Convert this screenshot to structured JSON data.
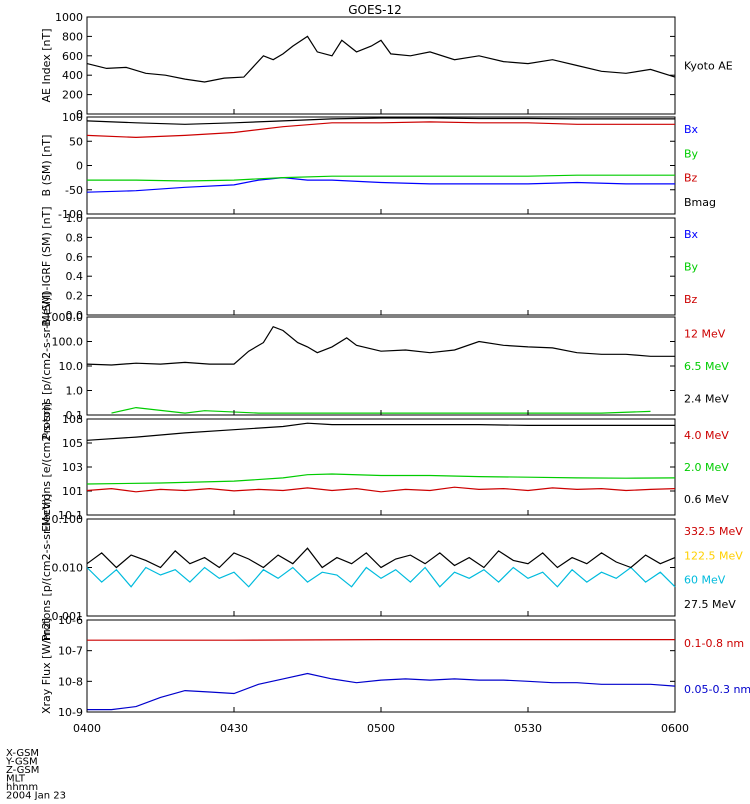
{
  "title": "GOES-12",
  "footer": {
    "coord_labels": [
      "X-GSM",
      "Y-GSM",
      "Z-GSM",
      "MLT",
      "hhmm",
      "2004 Jan 23"
    ],
    "time_ticks": [
      "0400",
      "0430",
      "0500",
      "0530",
      "0600"
    ]
  },
  "chart_data": [
    {
      "type": "line",
      "ylabel": "AE Index [nT]",
      "ylim": [
        0,
        1000
      ],
      "yticks": [
        "0",
        "200",
        "400",
        "600",
        "800",
        "1000"
      ],
      "series": [
        {
          "name": "Kyoto AE",
          "color": "#000000",
          "x": [
            "04:00",
            "04:04",
            "04:08",
            "04:12",
            "04:16",
            "04:20",
            "04:24",
            "04:28",
            "04:32",
            "04:36",
            "04:38",
            "04:40",
            "04:42",
            "04:45",
            "04:47",
            "04:50",
            "04:52",
            "04:55",
            "04:58",
            "05:00",
            "05:02",
            "05:06",
            "05:10",
            "05:15",
            "05:20",
            "05:25",
            "05:30",
            "05:35",
            "05:40",
            "05:45",
            "05:50",
            "05:55",
            "06:00"
          ],
          "y": [
            520,
            470,
            480,
            420,
            400,
            360,
            330,
            370,
            380,
            600,
            560,
            620,
            700,
            800,
            640,
            600,
            760,
            640,
            700,
            760,
            620,
            600,
            640,
            560,
            600,
            540,
            520,
            560,
            500,
            440,
            420,
            460,
            380
          ]
        }
      ]
    },
    {
      "type": "line",
      "ylabel": "B (SM) [nT]",
      "ylim": [
        -100,
        100
      ],
      "yticks": [
        "-100",
        "-50",
        "0",
        "50",
        "100"
      ],
      "series": [
        {
          "name": "Bx",
          "color": "#0000ff",
          "x": [
            "04:00",
            "04:10",
            "04:20",
            "04:30",
            "04:35",
            "04:40",
            "04:45",
            "04:50",
            "05:00",
            "05:10",
            "05:20",
            "05:30",
            "05:40",
            "05:50",
            "06:00"
          ],
          "y": [
            -55,
            -52,
            -45,
            -40,
            -30,
            -25,
            -30,
            -30,
            -35,
            -38,
            -38,
            -38,
            -35,
            -38,
            -38
          ]
        },
        {
          "name": "By",
          "color": "#00cc00",
          "x": [
            "04:00",
            "04:10",
            "04:20",
            "04:30",
            "04:40",
            "04:50",
            "05:00",
            "05:10",
            "05:20",
            "05:30",
            "05:40",
            "05:50",
            "06:00"
          ],
          "y": [
            -30,
            -30,
            -32,
            -30,
            -25,
            -22,
            -22,
            -22,
            -22,
            -22,
            -20,
            -20,
            -20
          ]
        },
        {
          "name": "Bz",
          "color": "#cc0000",
          "x": [
            "04:00",
            "04:10",
            "04:20",
            "04:30",
            "04:40",
            "04:50",
            "05:00",
            "05:10",
            "05:20",
            "05:30",
            "05:40",
            "05:50",
            "06:00"
          ],
          "y": [
            62,
            58,
            62,
            68,
            80,
            88,
            88,
            90,
            88,
            88,
            85,
            85,
            85
          ]
        },
        {
          "name": "Bmag",
          "color": "#000000",
          "x": [
            "04:00",
            "04:10",
            "04:20",
            "04:30",
            "04:40",
            "04:50",
            "05:00",
            "05:10",
            "05:20",
            "05:30",
            "05:40",
            "05:50",
            "06:00"
          ],
          "y": [
            92,
            88,
            85,
            88,
            92,
            96,
            98,
            98,
            97,
            97,
            96,
            96,
            96
          ]
        }
      ]
    },
    {
      "type": "line",
      "ylabel": "B (SM)-IGRF (SM) [nT]",
      "ylim": [
        0,
        1
      ],
      "yticks": [
        "0.0",
        "0.2",
        "0.4",
        "0.6",
        "0.8",
        "1.0"
      ],
      "series": [
        {
          "name": "Bx",
          "color": "#0000ff",
          "x": [],
          "y": []
        },
        {
          "name": "By",
          "color": "#00cc00",
          "x": [],
          "y": []
        },
        {
          "name": "Bz",
          "color": "#cc0000",
          "x": [],
          "y": []
        }
      ]
    },
    {
      "type": "line",
      "scale": "log",
      "ylabel": "Protons [p/(cm2-s-sr-MeV)]",
      "ylim": [
        0.1,
        1000
      ],
      "yticks": [
        "0.1",
        "1.0",
        "10.0",
        "100.0",
        "1000.0"
      ],
      "series": [
        {
          "name": "12 MeV",
          "color": "#cc0000",
          "x": [],
          "y": []
        },
        {
          "name": "6.5 MeV",
          "color": "#00cc00",
          "x": [
            "04:05",
            "04:10",
            "04:20",
            "04:24",
            "04:35",
            "04:45",
            "05:00",
            "05:10",
            "05:25",
            "05:35",
            "05:45",
            "05:55"
          ],
          "y": [
            0.12,
            0.2,
            0.12,
            0.15,
            0.12,
            0.12,
            0.12,
            0.12,
            0.12,
            0.12,
            0.12,
            0.14
          ]
        },
        {
          "name": "2.4 MeV",
          "color": "#000000",
          "x": [
            "04:00",
            "04:05",
            "04:10",
            "04:15",
            "04:20",
            "04:25",
            "04:30",
            "04:33",
            "04:36",
            "04:38",
            "04:40",
            "04:43",
            "04:45",
            "04:47",
            "04:50",
            "04:53",
            "04:55",
            "05:00",
            "05:05",
            "05:10",
            "05:15",
            "05:20",
            "05:25",
            "05:30",
            "05:35",
            "05:40",
            "05:45",
            "05:50",
            "05:55",
            "06:00"
          ],
          "y": [
            12,
            11,
            13,
            12,
            14,
            12,
            12,
            40,
            90,
            400,
            280,
            90,
            60,
            35,
            60,
            140,
            70,
            40,
            45,
            35,
            45,
            100,
            70,
            60,
            55,
            35,
            30,
            30,
            25,
            25
          ]
        }
      ]
    },
    {
      "type": "line",
      "scale": "log",
      "ylabel": "Electrons [e/(cm2-s-sr)]",
      "ylim": [
        0.1,
        100000000.0
      ],
      "yticks": [
        "10-1",
        "101",
        "103",
        "105",
        "108"
      ],
      "series": [
        {
          "name": "4.0 MeV",
          "color": "#cc0000",
          "x": [
            "04:00",
            "04:05",
            "04:10",
            "04:15",
            "04:20",
            "04:25",
            "04:30",
            "04:35",
            "04:40",
            "04:45",
            "04:50",
            "04:55",
            "05:00",
            "05:05",
            "05:10",
            "05:15",
            "05:20",
            "05:25",
            "05:30",
            "05:35",
            "05:40",
            "05:45",
            "05:50",
            "05:55",
            "06:00"
          ],
          "y": [
            20,
            30,
            15,
            25,
            20,
            30,
            18,
            25,
            20,
            35,
            20,
            30,
            15,
            25,
            20,
            40,
            25,
            30,
            20,
            35,
            25,
            30,
            20,
            25,
            30
          ]
        },
        {
          "name": "2.0 MeV",
          "color": "#00cc00",
          "x": [
            "04:00",
            "04:15",
            "04:30",
            "04:40",
            "04:45",
            "04:50",
            "05:00",
            "05:10",
            "05:20",
            "05:30",
            "05:40",
            "05:50",
            "06:00"
          ],
          "y": [
            80,
            100,
            150,
            300,
            600,
            700,
            500,
            500,
            400,
            350,
            300,
            280,
            300
          ]
        },
        {
          "name": "0.6 MeV",
          "color": "#000000",
          "x": [
            "04:00",
            "04:10",
            "04:20",
            "04:30",
            "04:40",
            "04:45",
            "04:50",
            "05:00",
            "05:10",
            "05:20",
            "05:30",
            "05:40",
            "05:50",
            "06:00"
          ],
          "y": [
            1000000.0,
            2000000.0,
            5000000.0,
            10000000.0,
            20000000.0,
            40000000.0,
            30000000.0,
            30000000.0,
            30000000.0,
            30000000.0,
            25000000.0,
            25000000.0,
            25000000.0,
            25000000.0
          ]
        }
      ]
    },
    {
      "type": "line",
      "scale": "log",
      "ylabel": "Protons [p/(cm2-s-sr-MeV)]",
      "ylim": [
        0.001,
        0.1
      ],
      "yticks": [
        "0.001",
        "0.010",
        "0.100"
      ],
      "series": [
        {
          "name": "332.5 MeV",
          "color": "#cc0000",
          "x": [],
          "y": []
        },
        {
          "name": "122.5 MeV",
          "color": "#ffff00",
          "x": [],
          "y": []
        },
        {
          "name": "60 MeV",
          "color": "#00bbdd",
          "x": [
            "04:00",
            "04:03",
            "04:06",
            "04:09",
            "04:12",
            "04:15",
            "04:18",
            "04:21",
            "04:24",
            "04:27",
            "04:30",
            "04:33",
            "04:36",
            "04:39",
            "04:42",
            "04:45",
            "04:48",
            "04:51",
            "04:54",
            "04:57",
            "05:00",
            "05:03",
            "05:06",
            "05:09",
            "05:12",
            "05:15",
            "05:18",
            "05:21",
            "05:24",
            "05:27",
            "05:30",
            "05:33",
            "05:36",
            "05:39",
            "05:42",
            "05:45",
            "05:48",
            "05:51",
            "05:54",
            "05:57",
            "06:00"
          ],
          "y": [
            0.01,
            0.005,
            0.009,
            0.004,
            0.01,
            0.007,
            0.009,
            0.005,
            0.01,
            0.006,
            0.008,
            0.004,
            0.009,
            0.006,
            0.01,
            0.005,
            0.008,
            0.007,
            0.004,
            0.01,
            0.006,
            0.009,
            0.005,
            0.01,
            0.004,
            0.008,
            0.006,
            0.009,
            0.005,
            0.01,
            0.006,
            0.008,
            0.004,
            0.009,
            0.005,
            0.008,
            0.006,
            0.01,
            0.005,
            0.008,
            0.004
          ]
        },
        {
          "name": "27.5 MeV",
          "color": "#000000",
          "x": [
            "04:00",
            "04:03",
            "04:06",
            "04:09",
            "04:12",
            "04:15",
            "04:18",
            "04:21",
            "04:24",
            "04:27",
            "04:30",
            "04:33",
            "04:36",
            "04:39",
            "04:42",
            "04:45",
            "04:48",
            "04:51",
            "04:54",
            "04:57",
            "05:00",
            "05:03",
            "05:06",
            "05:09",
            "05:12",
            "05:15",
            "05:18",
            "05:21",
            "05:24",
            "05:27",
            "05:30",
            "05:33",
            "05:36",
            "05:39",
            "05:42",
            "05:45",
            "05:48",
            "05:51",
            "05:54",
            "05:57",
            "06:00"
          ],
          "y": [
            0.012,
            0.02,
            0.01,
            0.018,
            0.014,
            0.01,
            0.022,
            0.012,
            0.016,
            0.01,
            0.02,
            0.015,
            0.01,
            0.018,
            0.012,
            0.025,
            0.01,
            0.016,
            0.012,
            0.02,
            0.01,
            0.015,
            0.018,
            0.012,
            0.02,
            0.011,
            0.016,
            0.01,
            0.022,
            0.014,
            0.012,
            0.02,
            0.01,
            0.016,
            0.012,
            0.02,
            0.013,
            0.01,
            0.018,
            0.012,
            0.016
          ]
        }
      ]
    },
    {
      "type": "line",
      "scale": "log",
      "ylabel": "Xray Flux [W/m2]",
      "ylim": [
        1e-09,
        1e-06
      ],
      "yticks": [
        "10-9",
        "10-8",
        "10-7",
        "10-6"
      ],
      "series": [
        {
          "name": "0.1-0.8 nm",
          "color": "#cc0000",
          "x": [
            "04:00",
            "04:30",
            "05:00",
            "05:30",
            "06:00"
          ],
          "y": [
            2.2e-07,
            2.2e-07,
            2.3e-07,
            2.3e-07,
            2.3e-07
          ]
        },
        {
          "name": "0.05-0.3 nm",
          "color": "#0000cc",
          "x": [
            "04:00",
            "04:05",
            "04:10",
            "04:15",
            "04:20",
            "04:25",
            "04:30",
            "04:35",
            "04:40",
            "04:45",
            "04:50",
            "04:55",
            "05:00",
            "05:05",
            "05:10",
            "05:15",
            "05:20",
            "05:25",
            "05:30",
            "05:35",
            "05:40",
            "05:45",
            "05:50",
            "05:55",
            "06:00"
          ],
          "y": [
            1.2e-09,
            1.2e-09,
            1.5e-09,
            3e-09,
            5e-09,
            4.5e-09,
            4e-09,
            8e-09,
            1.2e-08,
            1.8e-08,
            1.2e-08,
            9e-09,
            1.1e-08,
            1.2e-08,
            1.1e-08,
            1.2e-08,
            1.1e-08,
            1.1e-08,
            1e-08,
            9e-09,
            9e-09,
            8e-09,
            8e-09,
            8e-09,
            7e-09
          ]
        }
      ]
    }
  ]
}
